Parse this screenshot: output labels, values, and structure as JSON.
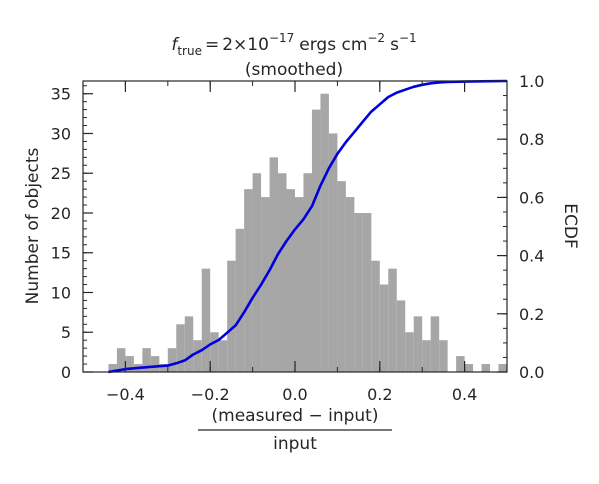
{
  "chart_data": {
    "type": "bar",
    "title": {
      "symbol": "f",
      "subscript": "true",
      "equals": "=",
      "mantissa": "2×10",
      "exponent": "−17",
      "unit1": "ergs cm",
      "unit1_exponent": "−2",
      "unit2": "s",
      "unit2_exponent": "−1"
    },
    "subtitle": "(smoothed)",
    "xlabel": {
      "numerator": "(measured − input)",
      "denominator": "input"
    },
    "ylabel": "Number of objects",
    "y2label": "ECDF",
    "xlim": [
      -0.5,
      0.5
    ],
    "ylim": [
      0,
      36.6
    ],
    "y2lim": [
      0,
      1.0
    ],
    "x_ticks": [
      "−0.4",
      "−0.2",
      "0.0",
      "0.2",
      "0.4"
    ],
    "x_tick_values": [
      -0.4,
      -0.2,
      0.0,
      0.2,
      0.4
    ],
    "y_ticks": [
      "0",
      "5",
      "10",
      "15",
      "20",
      "25",
      "30",
      "35"
    ],
    "y_tick_values": [
      0,
      5,
      10,
      15,
      20,
      25,
      30,
      35
    ],
    "y2_ticks": [
      "0.0",
      "0.2",
      "0.4",
      "0.6",
      "0.8",
      "1.0"
    ],
    "y2_tick_values": [
      0.0,
      0.2,
      0.4,
      0.6,
      0.8,
      1.0
    ],
    "grid": false,
    "histogram": {
      "bin_width": 0.02,
      "bin_starts": [
        -0.44,
        -0.42,
        -0.4,
        -0.38,
        -0.36,
        -0.34,
        -0.32,
        -0.3,
        -0.28,
        -0.26,
        -0.24,
        -0.22,
        -0.2,
        -0.18,
        -0.16,
        -0.14,
        -0.12,
        -0.1,
        -0.08,
        -0.06,
        -0.04,
        -0.02,
        0.0,
        0.02,
        0.04,
        0.06,
        0.08,
        0.1,
        0.12,
        0.14,
        0.16,
        0.18,
        0.2,
        0.22,
        0.24,
        0.26,
        0.28,
        0.3,
        0.32,
        0.34,
        0.36,
        0.38,
        0.4,
        0.42,
        0.44,
        0.46,
        0.48
      ],
      "counts": [
        1,
        3,
        2,
        1,
        3,
        2,
        1,
        3,
        6,
        7,
        4,
        13,
        5,
        4,
        14,
        18,
        23,
        25,
        22,
        27,
        25,
        23,
        22,
        25,
        33,
        35,
        30,
        24,
        22,
        20,
        20,
        14,
        11,
        13,
        9,
        5,
        7,
        4,
        7,
        4,
        0,
        2,
        1,
        0,
        1,
        0,
        1
      ],
      "color": "#a6a6a6"
    },
    "ecdf": {
      "x": [
        -0.44,
        -0.4,
        -0.36,
        -0.32,
        -0.3,
        -0.28,
        -0.26,
        -0.24,
        -0.22,
        -0.2,
        -0.18,
        -0.16,
        -0.14,
        -0.12,
        -0.1,
        -0.08,
        -0.06,
        -0.04,
        -0.02,
        0.0,
        0.02,
        0.04,
        0.06,
        0.08,
        0.1,
        0.12,
        0.14,
        0.16,
        0.18,
        0.2,
        0.22,
        0.24,
        0.26,
        0.28,
        0.3,
        0.32,
        0.34,
        0.36,
        0.4,
        0.44,
        0.5
      ],
      "y": [
        0.0,
        0.01,
        0.015,
        0.02,
        0.022,
        0.03,
        0.04,
        0.06,
        0.075,
        0.095,
        0.11,
        0.135,
        0.16,
        0.205,
        0.255,
        0.3,
        0.35,
        0.405,
        0.45,
        0.49,
        0.525,
        0.57,
        0.64,
        0.7,
        0.75,
        0.79,
        0.825,
        0.86,
        0.895,
        0.92,
        0.945,
        0.96,
        0.97,
        0.98,
        0.987,
        0.992,
        0.995,
        0.997,
        0.998,
        0.999,
        1.0
      ],
      "color": "#0000dd"
    }
  }
}
